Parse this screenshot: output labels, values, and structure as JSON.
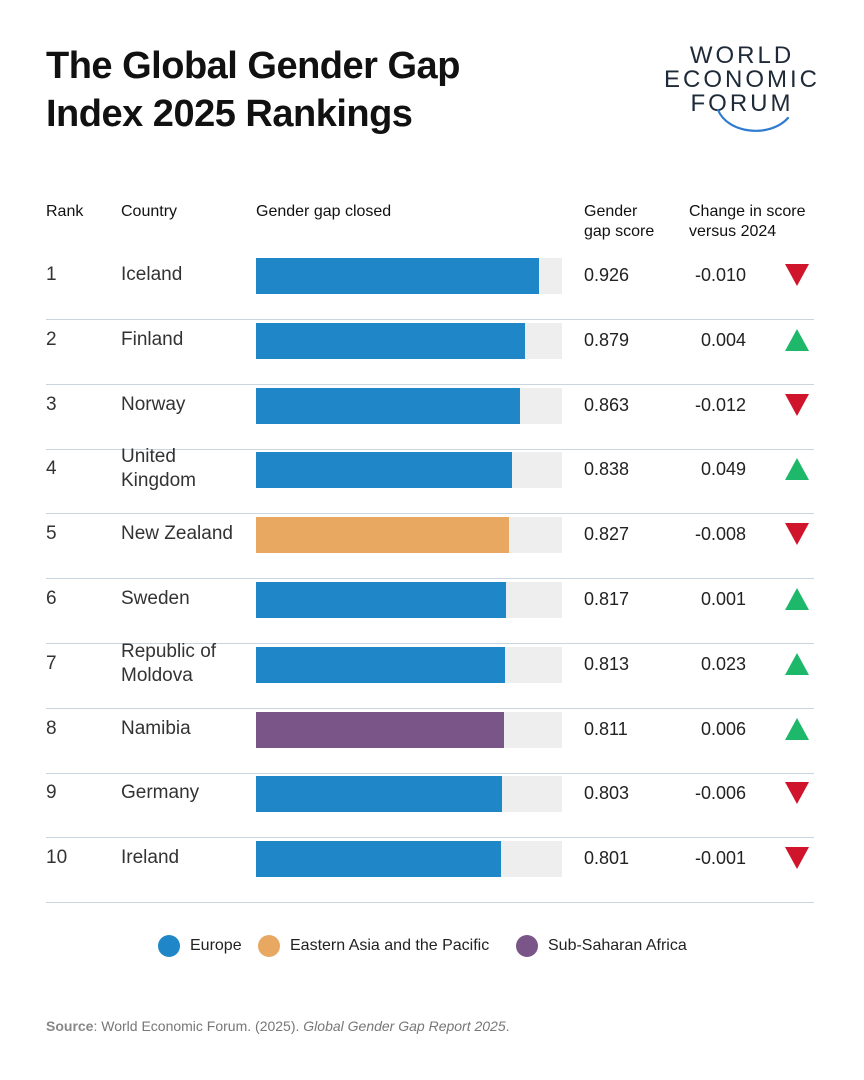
{
  "title": {
    "line1": "The Global Gender Gap",
    "line2": "Index 2025 Rankings"
  },
  "logo": {
    "line1": "WORLD",
    "line2": "ECONOMIC",
    "line3": "FORUM"
  },
  "headers": {
    "rank": "Rank",
    "country": "Country",
    "bar": "Gender gap closed",
    "score_line1": "Gender",
    "score_line2": "gap score",
    "change_line1": "Change in score",
    "change_line2": "versus 2024"
  },
  "colors": {
    "Europe": "#1f86c8",
    "Eastern Asia and the Pacific": "#e8a862",
    "Sub-Saharan Africa": "#7a5587",
    "up": "#1db86a",
    "down": "#d0142c",
    "track": "#eeeeee"
  },
  "chart_data": {
    "type": "bar",
    "orientation": "horizontal",
    "xlim": [
      0,
      1
    ],
    "rows": [
      {
        "rank": "1",
        "country": "Iceland",
        "score": 0.926,
        "score_label": "0.926",
        "change": -0.01,
        "change_label": "-0.010",
        "region": "Europe"
      },
      {
        "rank": "2",
        "country": "Finland",
        "score": 0.879,
        "score_label": "0.879",
        "change": 0.004,
        "change_label": "0.004",
        "region": "Europe"
      },
      {
        "rank": "3",
        "country": "Norway",
        "score": 0.863,
        "score_label": "0.863",
        "change": -0.012,
        "change_label": "-0.012",
        "region": "Europe"
      },
      {
        "rank": "4",
        "country": "United Kingdom",
        "score": 0.838,
        "score_label": "0.838",
        "change": 0.049,
        "change_label": "0.049",
        "region": "Europe"
      },
      {
        "rank": "5",
        "country": "New Zealand",
        "score": 0.827,
        "score_label": "0.827",
        "change": -0.008,
        "change_label": "-0.008",
        "region": "Eastern Asia and the Pacific"
      },
      {
        "rank": "6",
        "country": "Sweden",
        "score": 0.817,
        "score_label": "0.817",
        "change": 0.001,
        "change_label": "0.001",
        "region": "Europe"
      },
      {
        "rank": "7",
        "country": "Republic of Moldova",
        "score": 0.813,
        "score_label": "0.813",
        "change": 0.023,
        "change_label": "0.023",
        "region": "Europe"
      },
      {
        "rank": "8",
        "country": "Namibia",
        "score": 0.811,
        "score_label": "0.811",
        "change": 0.006,
        "change_label": "0.006",
        "region": "Sub-Saharan Africa"
      },
      {
        "rank": "9",
        "country": "Germany",
        "score": 0.803,
        "score_label": "0.803",
        "change": -0.006,
        "change_label": "-0.006",
        "region": "Europe"
      },
      {
        "rank": "10",
        "country": "Ireland",
        "score": 0.801,
        "score_label": "0.801",
        "change": -0.001,
        "change_label": "-0.001",
        "region": "Europe"
      }
    ],
    "legend": [
      "Europe",
      "Eastern Asia and the Pacific",
      "Sub-Saharan Africa"
    ]
  },
  "source": {
    "label": "Source",
    "text": ": World Economic Forum. (2025). ",
    "italic": "Global Gender Gap Report 2025",
    "end": "."
  }
}
